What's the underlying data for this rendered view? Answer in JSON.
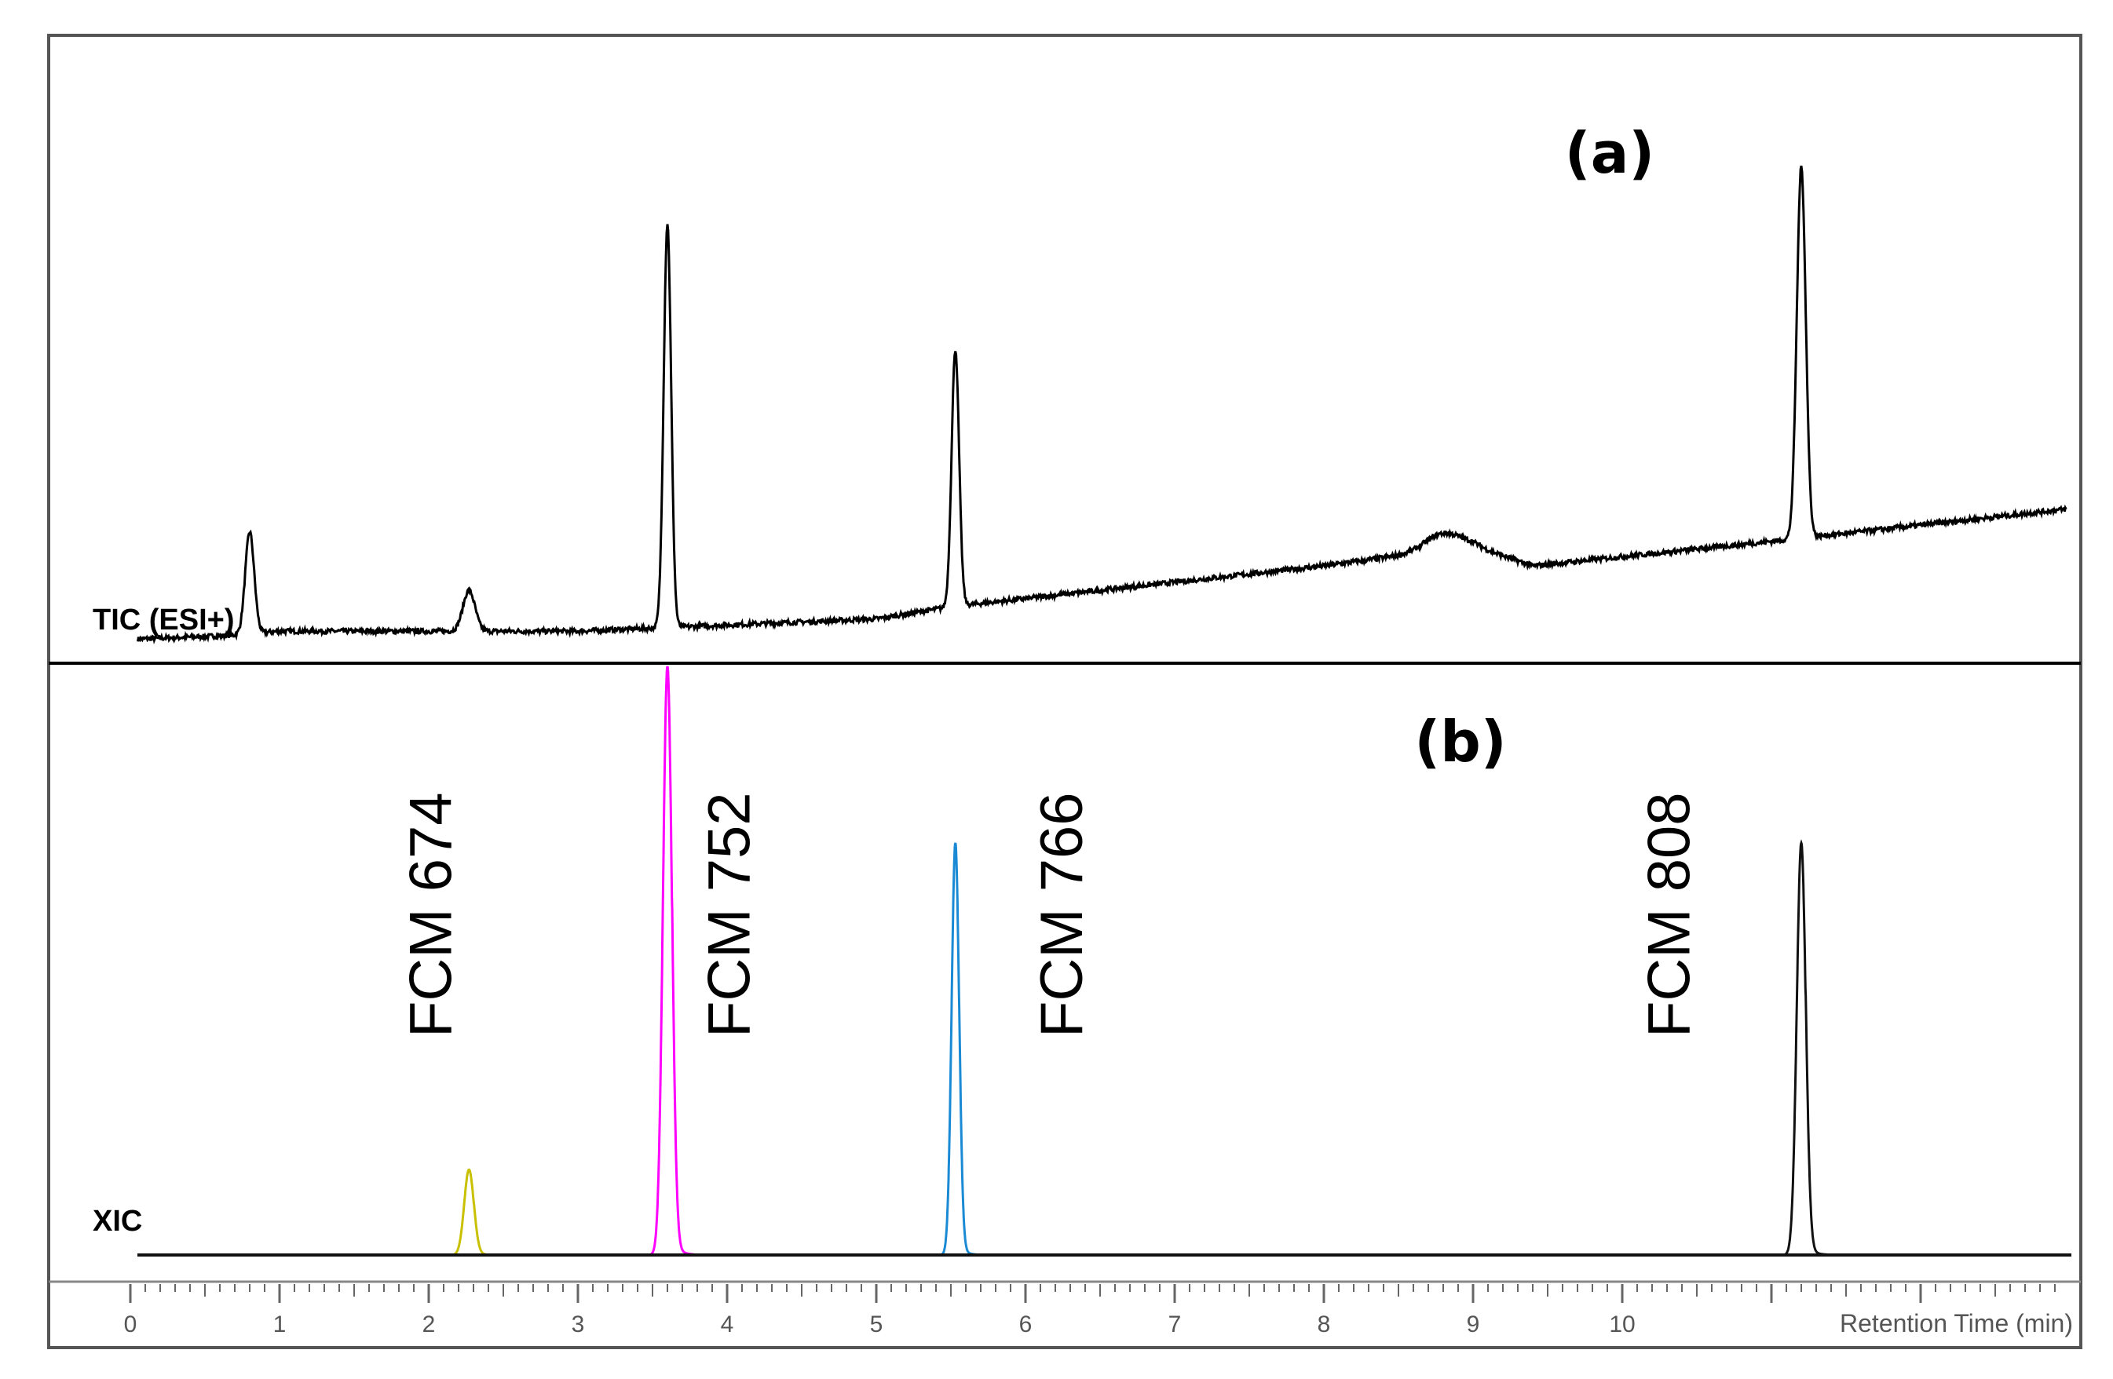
{
  "chart_data": {
    "type": "line",
    "x_axis": {
      "label": "Retention Time (min)",
      "range": [
        0,
        13
      ],
      "ticks": [
        0,
        1,
        2,
        3,
        4,
        5,
        6,
        7,
        8,
        9,
        10
      ]
    },
    "panels": [
      {
        "id": "a",
        "panel_label": "(a)",
        "trace_label": "TIC (ESI+)",
        "series": [
          {
            "color": "#000000",
            "baseline": [
              [
                0.0,
                0.02
              ],
              [
                0.7,
                0.03
              ],
              [
                1.0,
                0.04
              ],
              [
                3.0,
                0.04
              ],
              [
                5.0,
                0.07
              ],
              [
                5.5,
                0.1
              ],
              [
                8.0,
                0.2
              ],
              [
                9.0,
                0.25
              ],
              [
                9.4,
                0.2
              ],
              [
                11.0,
                0.26
              ],
              [
                12.0,
                0.3
              ],
              [
                13.0,
                0.34
              ]
            ],
            "peaks": [
              {
                "rt": 0.8,
                "height": 0.25,
                "width": 0.03
              },
              {
                "rt": 2.27,
                "height": 0.1,
                "width": 0.04
              },
              {
                "rt": 3.6,
                "height": 0.99,
                "width": 0.025
              },
              {
                "rt": 5.53,
                "height": 0.63,
                "width": 0.025
              },
              {
                "rt": 8.8,
                "height": 0.04,
                "width": 0.12
              },
              {
                "rt": 11.2,
                "height": 0.91,
                "width": 0.03
              }
            ]
          }
        ]
      },
      {
        "id": "b",
        "panel_label": "(b)",
        "trace_label": "XIC",
        "series": [
          {
            "name": "FCM 674",
            "color": "#c8c000",
            "peak": {
              "rt": 2.27,
              "height": 0.145,
              "width": 0.032
            }
          },
          {
            "name": "FCM 752",
            "color": "#ff00ff",
            "peak": {
              "rt": 3.6,
              "height": 1.0,
              "width": 0.03
            }
          },
          {
            "name": "FCM 766",
            "color": "#1a8ad4",
            "peak": {
              "rt": 5.53,
              "height": 0.7,
              "width": 0.025
            }
          },
          {
            "name": "FCM 808",
            "color": "#111111",
            "peak": {
              "rt": 11.2,
              "height": 0.7,
              "width": 0.03
            }
          }
        ],
        "annotations": [
          {
            "text": "FCM 674",
            "rt": 2.15
          },
          {
            "text": "FCM 752",
            "rt": 4.15
          },
          {
            "text": "FCM 766",
            "rt": 6.38
          },
          {
            "text": "FCM 808",
            "rt": 10.45
          }
        ]
      }
    ]
  }
}
